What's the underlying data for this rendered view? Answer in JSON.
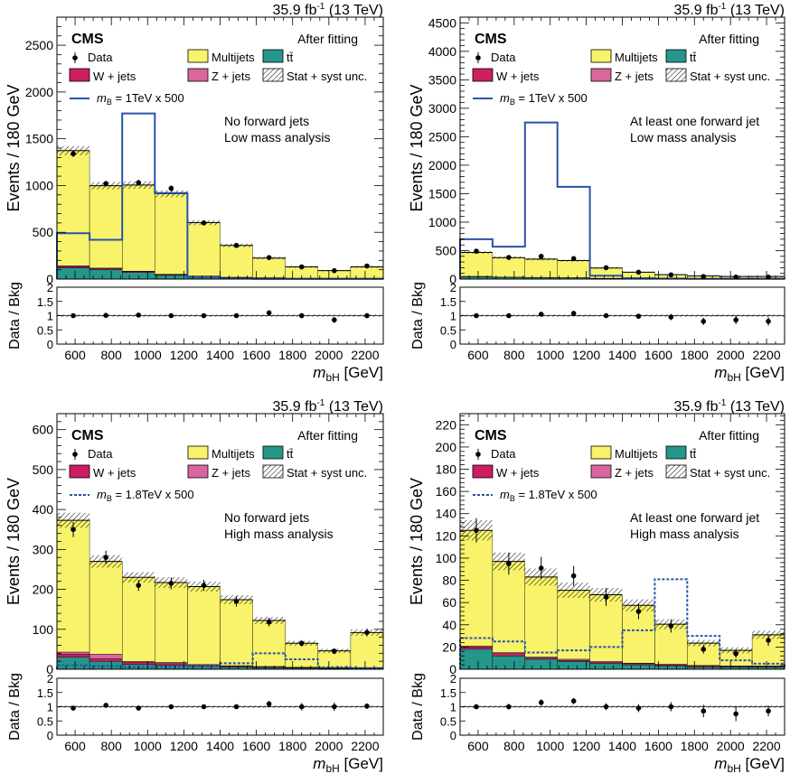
{
  "colors": {
    "multijets": "#f8f36a",
    "ttbar": "#24968a",
    "wjets": "#cc1f61",
    "zjets": "#d9679e",
    "signal": "#2a52a8",
    "data": "#000000"
  },
  "common": {
    "lumi_label": "35.9 fb",
    "lumi_sup": "-1",
    "energy_label": "(13 TeV)",
    "cms_label": "CMS",
    "fit_label": "After fitting",
    "xlabel_m": "m",
    "xlabel_sub": "bH",
    "xlabel_unit": "[GeV]",
    "ylabel": "Events / 180 GeV",
    "ratio_ylabel": "Data / Bkg",
    "legend": {
      "data": "Data",
      "multijets": "Multijets",
      "ttbar": "tt̄",
      "wjets": "W + jets",
      "zjets": "Z + jets",
      "unc": "Stat + syst unc."
    }
  },
  "chart_data": [
    {
      "type": "bar",
      "name": "top-left",
      "note1": "No forward jets",
      "note2": "Low mass analysis",
      "signal_label_m": "m",
      "signal_label_sub": "B",
      "signal_label_rest": " = 1TeV x 500",
      "signal_style": "solid",
      "bin_edges": [
        500,
        680,
        860,
        1040,
        1220,
        1400,
        1580,
        1760,
        1940,
        2120,
        2300
      ],
      "ylim": [
        0,
        2800
      ],
      "yticks": [
        0,
        500,
        1000,
        1500,
        2000,
        2500
      ],
      "xticks": [
        600,
        800,
        1000,
        1200,
        1400,
        1600,
        1800,
        2000,
        2200
      ],
      "multijets": [
        1230,
        880,
        920,
        860,
        570,
        340,
        210,
        120,
        80,
        120
      ],
      "ttbar": [
        120,
        100,
        70,
        40,
        25,
        15,
        12,
        8,
        8,
        8
      ],
      "wjets": [
        15,
        12,
        10,
        8,
        5,
        3,
        2,
        1,
        1,
        1
      ],
      "zjets": [
        8,
        6,
        5,
        4,
        3,
        2,
        1,
        1,
        1,
        1
      ],
      "signal": [
        490,
        420,
        1770,
        920,
        20,
        5,
        3,
        2,
        2,
        2
      ],
      "data": [
        1340,
        1020,
        1030,
        970,
        600,
        360,
        230,
        130,
        90,
        140
      ],
      "data_err": [
        35,
        32,
        32,
        31,
        24,
        19,
        15,
        11,
        9,
        12
      ],
      "ratio": [
        1.0,
        1.01,
        1.02,
        1.0,
        1.0,
        1.0,
        1.1,
        1.0,
        0.85,
        1.0
      ],
      "ratio_err": [
        0.03,
        0.03,
        0.03,
        0.03,
        0.04,
        0.05,
        0.07,
        0.09,
        0.1,
        0.09
      ],
      "ratio_ylim": [
        0,
        2
      ]
    },
    {
      "type": "bar",
      "name": "top-right",
      "note1": "At least one forward jet",
      "note2": "Low mass analysis",
      "signal_label_m": "m",
      "signal_label_sub": "B",
      "signal_label_rest": " = 1TeV x 500",
      "signal_style": "solid",
      "bin_edges": [
        500,
        680,
        860,
        1040,
        1220,
        1400,
        1580,
        1760,
        1940,
        2120,
        2300
      ],
      "ylim": [
        0,
        4600
      ],
      "yticks": [
        0,
        500,
        1000,
        1500,
        2000,
        2500,
        3000,
        3500,
        4000,
        4500
      ],
      "xticks": [
        600,
        800,
        1000,
        1200,
        1400,
        1600,
        1800,
        2000,
        2200
      ],
      "multijets": [
        420,
        340,
        320,
        300,
        180,
        110,
        70,
        50,
        40,
        40
      ],
      "ttbar": [
        40,
        30,
        25,
        20,
        12,
        8,
        6,
        4,
        3,
        3
      ],
      "wjets": [
        5,
        4,
        3,
        3,
        2,
        1,
        1,
        1,
        1,
        1
      ],
      "zjets": [
        3,
        2,
        2,
        2,
        1,
        1,
        1,
        1,
        1,
        1
      ],
      "signal": [
        700,
        570,
        2750,
        1620,
        60,
        15,
        10,
        5,
        5,
        5
      ],
      "data": [
        490,
        380,
        400,
        360,
        200,
        120,
        75,
        45,
        35,
        35
      ],
      "data_err": [
        22,
        20,
        20,
        19,
        14,
        11,
        9,
        7,
        6,
        6
      ],
      "ratio": [
        1.0,
        1.0,
        1.05,
        1.08,
        1.0,
        0.98,
        0.95,
        0.8,
        0.85,
        0.8
      ],
      "ratio_err": [
        0.05,
        0.05,
        0.05,
        0.05,
        0.07,
        0.09,
        0.11,
        0.13,
        0.15,
        0.15
      ],
      "ratio_ylim": [
        0,
        2
      ]
    },
    {
      "type": "bar",
      "name": "bottom-left",
      "note1": "No forward jets",
      "note2": "High mass analysis",
      "signal_label_m": "m",
      "signal_label_sub": "B",
      "signal_label_rest": " = 1.8TeV x 500",
      "signal_style": "dotted",
      "bin_edges": [
        500,
        680,
        860,
        1040,
        1220,
        1400,
        1580,
        1760,
        1940,
        2120,
        2300
      ],
      "ylim": [
        0,
        640
      ],
      "yticks": [
        0,
        100,
        200,
        300,
        400,
        500,
        600
      ],
      "xticks": [
        600,
        800,
        1000,
        1200,
        1400,
        1600,
        1800,
        2000,
        2200
      ],
      "multijets": [
        330,
        232,
        210,
        200,
        195,
        165,
        115,
        60,
        42,
        88
      ],
      "ttbar": [
        30,
        20,
        12,
        10,
        7,
        5,
        4,
        3,
        2,
        2
      ],
      "wjets": [
        8,
        6,
        5,
        4,
        3,
        2,
        2,
        1,
        1,
        1
      ],
      "zjets": [
        5,
        12,
        3,
        3,
        2,
        2,
        1,
        1,
        1,
        1
      ],
      "signal": [
        10,
        8,
        6,
        6,
        8,
        15,
        40,
        25,
        5,
        3
      ],
      "data": [
        350,
        280,
        210,
        215,
        210,
        170,
        118,
        65,
        45,
        92
      ],
      "data_err": [
        19,
        17,
        14,
        15,
        14,
        13,
        11,
        8,
        7,
        10
      ],
      "ratio": [
        0.95,
        1.05,
        0.95,
        1.0,
        1.0,
        1.0,
        1.1,
        1.0,
        1.0,
        1.02
      ],
      "ratio_err": [
        0.05,
        0.06,
        0.07,
        0.07,
        0.07,
        0.08,
        0.1,
        0.13,
        0.15,
        0.1
      ],
      "ratio_ylim": [
        0,
        2
      ]
    },
    {
      "type": "bar",
      "name": "bottom-right",
      "note1": "At least one forward jet",
      "note2": "High mass analysis",
      "signal_label_m": "m",
      "signal_label_sub": "B",
      "signal_label_rest": " = 1.8TeV x 500",
      "signal_style": "dotted",
      "bin_edges": [
        500,
        680,
        860,
        1040,
        1220,
        1400,
        1580,
        1760,
        1940,
        2120,
        2300
      ],
      "ylim": [
        0,
        230
      ],
      "yticks": [
        0,
        20,
        40,
        60,
        80,
        100,
        120,
        140,
        160,
        180,
        200,
        220
      ],
      "xticks": [
        600,
        800,
        1000,
        1200,
        1400,
        1600,
        1800,
        2000,
        2200
      ],
      "multijets": [
        104,
        82,
        72,
        62,
        60,
        52,
        36,
        20,
        14,
        28
      ],
      "ttbar": [
        18,
        12,
        9,
        7,
        5,
        4,
        3,
        2,
        2,
        2
      ],
      "wjets": [
        2,
        2,
        1,
        1,
        1,
        1,
        1,
        1,
        0.5,
        0.5
      ],
      "zjets": [
        1,
        1,
        1,
        1,
        1,
        0.5,
        0.5,
        0.5,
        0.5,
        0.5
      ],
      "signal": [
        28,
        25,
        15,
        17,
        20,
        35,
        81,
        30,
        8,
        5
      ],
      "data": [
        125,
        95,
        91,
        84,
        65,
        52,
        39,
        18,
        14,
        26
      ],
      "data_err": [
        11,
        10,
        10,
        9,
        8,
        7,
        6,
        4,
        4,
        5
      ],
      "ratio": [
        1.0,
        1.0,
        1.15,
        1.2,
        1.0,
        0.95,
        1.0,
        0.85,
        0.75,
        0.85
      ],
      "ratio_err": [
        0.09,
        0.1,
        0.11,
        0.11,
        0.12,
        0.14,
        0.16,
        0.22,
        0.26,
        0.19
      ],
      "ratio_ylim": [
        0,
        2
      ]
    }
  ]
}
